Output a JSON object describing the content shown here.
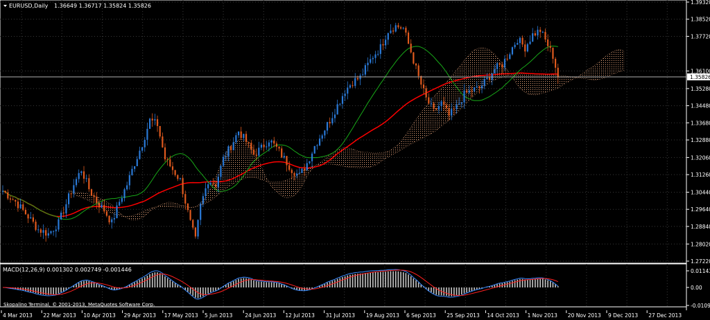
{
  "header": {
    "icon": "dropdown-arrow-icon",
    "symbol": "EURUSD,Daily",
    "ohlc": "1.36649 1.36717 1.35824 1.35826"
  },
  "macd_panel": {
    "label": "MACD(12,26,9) 0.001302 0.002749 -0.001446",
    "yticks": [
      "0.011434",
      "0.00",
      "-0.010932"
    ]
  },
  "watermark": "Skopalino Terminal, © 2001-2013, MetaQuotes Software Corp.",
  "colors": {
    "bull": "#2a7ad8",
    "bear": "#e05a1e",
    "ma_red": "#ff0000",
    "ma_green": "#18a818",
    "cloud_a": "#e0a078",
    "cloud_b": "#d8d8d8",
    "macd_fast": "#3a8aff",
    "macd_slow": "#ff2020",
    "hist": "#c8c8c8",
    "price_line": "#b0b0b0"
  },
  "chart_data": {
    "type": "candlestick",
    "title": "EURUSD,Daily",
    "price_axis": [
      "1.39320",
      "1.38520",
      "1.37720",
      "1.36100",
      "1.35280",
      "1.34480",
      "1.33680",
      "1.32880",
      "1.32060",
      "1.31260",
      "1.30440",
      "1.29640",
      "1.28840",
      "1.28020",
      "1.27220"
    ],
    "ylim": [
      1.2722,
      1.3932
    ],
    "current_price": "1.35826",
    "x_ticks": [
      "4 Mar 2013",
      "22 Mar 2013",
      "10 Apr 2013",
      "29 Apr 2013",
      "17 May 2013",
      "5 Jun 2013",
      "24 Jun 2013",
      "12 Jul 2013",
      "31 Jul 2013",
      "19 Aug 2013",
      "6 Sep 2013",
      "25 Sep 2013",
      "14 Oct 2013",
      "1 Nov 2013",
      "20 Nov 2013",
      "9 Dec 2013",
      "27 Dec 2013"
    ],
    "close_path": [
      [
        0,
        1.305
      ],
      [
        5,
        1.3
      ],
      [
        10,
        1.293
      ],
      [
        14,
        1.287
      ],
      [
        18,
        1.285
      ],
      [
        22,
        1.29
      ],
      [
        25,
        1.299
      ],
      [
        28,
        1.308
      ],
      [
        31,
        1.315
      ],
      [
        34,
        1.306
      ],
      [
        37,
        1.3
      ],
      [
        40,
        1.296
      ],
      [
        43,
        1.29
      ],
      [
        46,
        1.3
      ],
      [
        49,
        1.308
      ],
      [
        52,
        1.318
      ],
      [
        55,
        1.327
      ],
      [
        58,
        1.338
      ],
      [
        61,
        1.336
      ],
      [
        64,
        1.32
      ],
      [
        67,
        1.315
      ],
      [
        70,
        1.31
      ],
      [
        72,
        1.3
      ],
      [
        74,
        1.29
      ],
      [
        76,
        1.282
      ],
      [
        78,
        1.298
      ],
      [
        81,
        1.31
      ],
      [
        84,
        1.308
      ],
      [
        87,
        1.32
      ],
      [
        90,
        1.326
      ],
      [
        93,
        1.333
      ],
      [
        96,
        1.328
      ],
      [
        99,
        1.322
      ],
      [
        102,
        1.325
      ],
      [
        105,
        1.329
      ],
      [
        108,
        1.325
      ],
      [
        111,
        1.32
      ],
      [
        114,
        1.315
      ],
      [
        117,
        1.312
      ],
      [
        120,
        1.318
      ],
      [
        123,
        1.326
      ],
      [
        126,
        1.332
      ],
      [
        129,
        1.338
      ],
      [
        132,
        1.345
      ],
      [
        135,
        1.352
      ],
      [
        138,
        1.356
      ],
      [
        141,
        1.358
      ],
      [
        144,
        1.364
      ],
      [
        146,
        1.368
      ],
      [
        149,
        1.372
      ],
      [
        152,
        1.38
      ],
      [
        155,
        1.382
      ],
      [
        158,
        1.381
      ],
      [
        161,
        1.37
      ],
      [
        164,
        1.358
      ],
      [
        167,
        1.348
      ],
      [
        170,
        1.342
      ],
      [
        173,
        1.346
      ],
      [
        176,
        1.34
      ],
      [
        179,
        1.344
      ],
      [
        182,
        1.35
      ],
      [
        185,
        1.352
      ],
      [
        188,
        1.353
      ],
      [
        191,
        1.357
      ],
      [
        194,
        1.362
      ],
      [
        197,
        1.364
      ],
      [
        200,
        1.37
      ],
      [
        203,
        1.376
      ],
      [
        206,
        1.372
      ],
      [
        209,
        1.378
      ],
      [
        212,
        1.38
      ],
      [
        215,
        1.373
      ],
      [
        217,
        1.368
      ],
      [
        219,
        1.3583
      ]
    ],
    "n_bars": 220
  }
}
